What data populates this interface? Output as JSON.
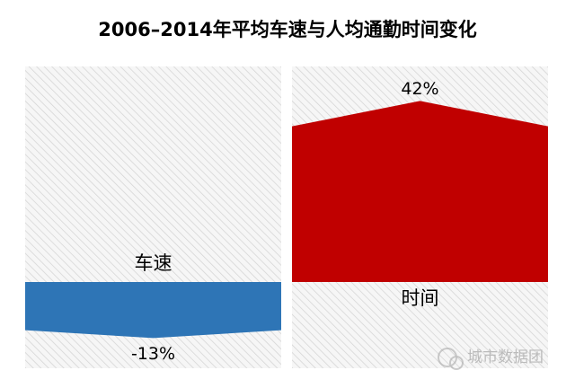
{
  "chart_data": {
    "type": "bar",
    "title": "2006–2014年平均车速与人均通勤时间变化",
    "categories": [
      "车速",
      "时间"
    ],
    "values": [
      -13,
      42
    ],
    "value_labels": [
      "-13%",
      "42%"
    ],
    "colors": [
      "#2e75b6",
      "#c00000"
    ],
    "ylim": [
      -20,
      50
    ],
    "watermark": "城市数据团"
  }
}
